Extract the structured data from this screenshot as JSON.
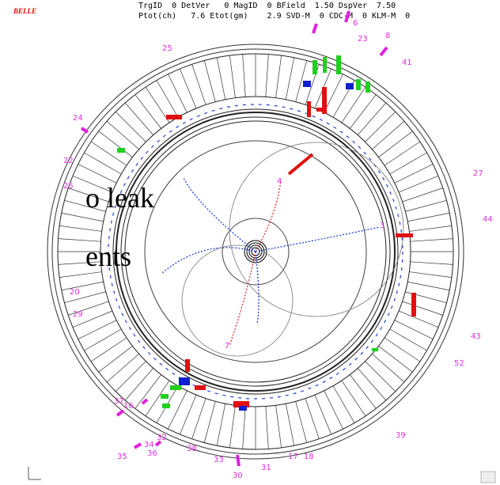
{
  "header": {
    "logo": "BELLE",
    "line1": "TrgID  0 DetVer   0 MagID  0 BField  1.50 DspVer  7.50",
    "line2": "Ptot(ch)   7.6 Etot(gm)    2.9 SVD-M  0 CDC-M  0 KLM-M  0"
  },
  "overlay_text": [
    "o leak",
    "ents"
  ],
  "module_labels": [
    "6",
    "23",
    "8",
    "25",
    "24",
    "22",
    "25",
    "41",
    "27",
    "44",
    "43",
    "52",
    "20",
    "29",
    "37",
    "16",
    "35",
    "34",
    "36",
    "32",
    "38",
    "33",
    "30",
    "31",
    "17",
    "18",
    "39",
    "3",
    "4",
    "7"
  ]
}
